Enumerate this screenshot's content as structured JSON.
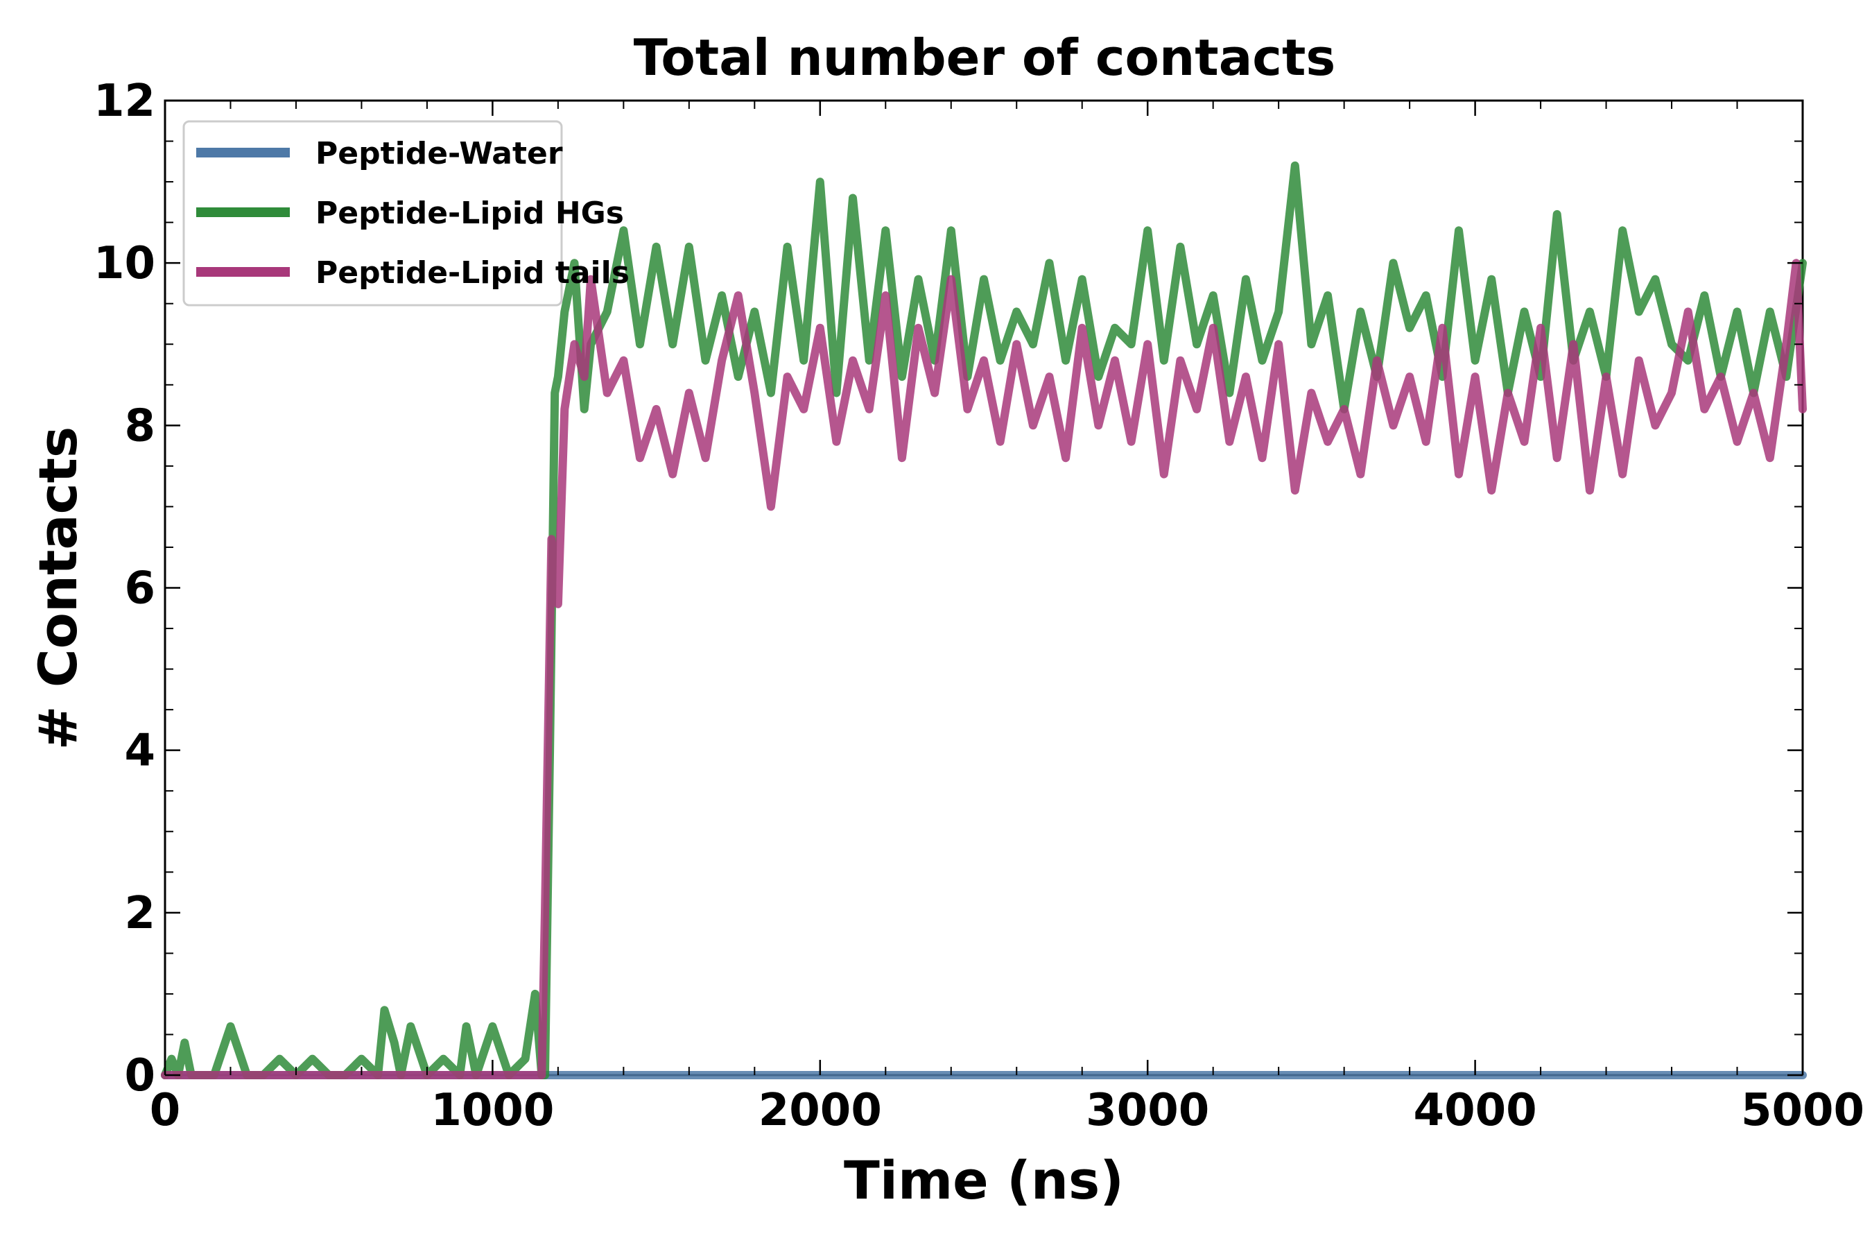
{
  "chart_data": {
    "type": "line",
    "title": "Total number of contacts",
    "xlabel": "Time (ns)",
    "ylabel": "# Contacts",
    "xlim": [
      0,
      5000
    ],
    "ylim": [
      0,
      12
    ],
    "xticks": [
      0,
      1000,
      2000,
      3000,
      4000,
      5000
    ],
    "yticks": [
      0,
      2,
      4,
      6,
      8,
      10,
      12
    ],
    "x_tick_labels": [
      "0",
      "1000",
      "2000",
      "3000",
      "4000",
      "5000"
    ],
    "y_tick_labels": [
      "0",
      "2",
      "4",
      "6",
      "8",
      "10",
      "12"
    ],
    "grid": false,
    "legend_position": "top-left",
    "series": [
      {
        "name": "Peptide-Water",
        "color": "#4e79a7",
        "x": [
          0,
          5000
        ],
        "y": [
          0,
          0
        ]
      },
      {
        "name": "Peptide-Lipid HGs",
        "color": "#2f8b3a",
        "x": [
          0,
          20,
          40,
          60,
          80,
          100,
          150,
          200,
          250,
          300,
          350,
          400,
          450,
          500,
          550,
          600,
          650,
          670,
          700,
          720,
          750,
          800,
          850,
          900,
          920,
          950,
          1000,
          1050,
          1100,
          1130,
          1150,
          1160,
          1175,
          1190,
          1200,
          1220,
          1250,
          1280,
          1300,
          1350,
          1400,
          1450,
          1500,
          1550,
          1600,
          1650,
          1700,
          1750,
          1800,
          1850,
          1900,
          1950,
          2000,
          2050,
          2100,
          2150,
          2200,
          2250,
          2300,
          2350,
          2400,
          2450,
          2500,
          2550,
          2600,
          2650,
          2700,
          2750,
          2800,
          2850,
          2900,
          2950,
          3000,
          3050,
          3100,
          3150,
          3200,
          3250,
          3300,
          3350,
          3400,
          3450,
          3500,
          3550,
          3600,
          3650,
          3700,
          3750,
          3800,
          3850,
          3900,
          3950,
          4000,
          4050,
          4100,
          4150,
          4200,
          4250,
          4300,
          4350,
          4400,
          4450,
          4500,
          4550,
          4600,
          4650,
          4700,
          4750,
          4800,
          4850,
          4900,
          4950,
          5000
        ],
        "y": [
          0,
          0.2,
          0,
          0.4,
          0,
          0,
          0,
          0.6,
          0,
          0,
          0.2,
          0,
          0.2,
          0,
          0,
          0.2,
          0,
          0.8,
          0.4,
          0,
          0.6,
          0,
          0.2,
          0,
          0.6,
          0,
          0.6,
          0,
          0.2,
          1.0,
          0,
          0,
          4.0,
          8.4,
          8.6,
          9.4,
          10.0,
          8.2,
          9.0,
          9.4,
          10.4,
          9.0,
          10.2,
          9.0,
          10.2,
          8.8,
          9.6,
          8.6,
          9.4,
          8.4,
          10.2,
          8.8,
          11.0,
          8.4,
          10.8,
          8.8,
          10.4,
          8.6,
          9.8,
          8.8,
          10.4,
          8.6,
          9.8,
          8.8,
          9.4,
          9.0,
          10.0,
          8.8,
          9.8,
          8.6,
          9.2,
          9.0,
          10.4,
          8.8,
          10.2,
          9.0,
          9.6,
          8.4,
          9.8,
          8.8,
          9.4,
          11.2,
          9.0,
          9.6,
          8.2,
          9.4,
          8.6,
          10.0,
          9.2,
          9.6,
          8.6,
          10.4,
          8.8,
          9.8,
          8.4,
          9.4,
          8.6,
          10.6,
          8.8,
          9.4,
          8.6,
          10.4,
          9.4,
          9.8,
          9.0,
          8.8,
          9.6,
          8.6,
          9.4,
          8.4,
          9.4,
          8.6,
          10.0
        ],
        "opacity": 0.85
      },
      {
        "name": "Peptide-Lipid tails",
        "color": "#a8387a",
        "x": [
          0,
          1150,
          1160,
          1180,
          1200,
          1220,
          1250,
          1280,
          1300,
          1350,
          1400,
          1450,
          1500,
          1550,
          1600,
          1650,
          1700,
          1750,
          1800,
          1850,
          1900,
          1950,
          2000,
          2050,
          2100,
          2150,
          2200,
          2250,
          2300,
          2350,
          2400,
          2450,
          2500,
          2550,
          2600,
          2650,
          2700,
          2750,
          2800,
          2850,
          2900,
          2950,
          3000,
          3050,
          3100,
          3150,
          3200,
          3250,
          3300,
          3350,
          3400,
          3450,
          3500,
          3550,
          3600,
          3650,
          3700,
          3750,
          3800,
          3850,
          3900,
          3950,
          4000,
          4050,
          4100,
          4150,
          4200,
          4250,
          4300,
          4350,
          4400,
          4450,
          4500,
          4550,
          4600,
          4650,
          4700,
          4750,
          4800,
          4850,
          4900,
          4950,
          4980,
          5000
        ],
        "y": [
          0,
          0,
          2.0,
          6.6,
          5.8,
          8.2,
          9.0,
          8.6,
          9.8,
          8.4,
          8.8,
          7.6,
          8.2,
          7.4,
          8.4,
          7.6,
          8.8,
          9.6,
          8.4,
          7.0,
          8.6,
          8.2,
          9.2,
          7.8,
          8.8,
          8.2,
          9.6,
          7.6,
          9.2,
          8.4,
          9.8,
          8.2,
          8.8,
          7.8,
          9.0,
          8.0,
          8.6,
          7.6,
          9.2,
          8.0,
          8.8,
          7.8,
          9.0,
          7.4,
          8.8,
          8.2,
          9.2,
          7.8,
          8.6,
          7.6,
          9.0,
          7.2,
          8.4,
          7.8,
          8.2,
          7.4,
          8.8,
          8.0,
          8.6,
          7.8,
          9.2,
          7.4,
          8.6,
          7.2,
          8.4,
          7.8,
          9.2,
          7.6,
          9.0,
          7.2,
          8.6,
          7.4,
          8.8,
          8.0,
          8.4,
          9.4,
          8.2,
          8.6,
          7.8,
          8.4,
          7.6,
          9.0,
          10.0,
          8.2
        ]
      }
    ]
  }
}
